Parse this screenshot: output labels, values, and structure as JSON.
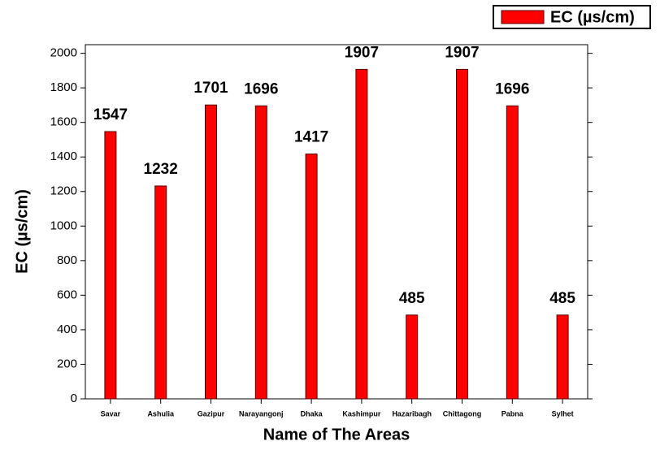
{
  "chart_data": {
    "type": "bar",
    "x_label": "Name of The Areas",
    "y_label": "EC (µs/cm)",
    "categories": [
      "Savar",
      "Ashulia",
      "Gazipur",
      "Narayangonj",
      "Dhaka",
      "Kashimpur",
      "Hazaribagh",
      "Chittagong",
      "Pabna",
      "Sylhet"
    ],
    "series": [
      {
        "name": "EC (µs/cm)",
        "color": "#ff0000",
        "values": [
          1547,
          1232,
          1701,
          1696,
          1417,
          1907,
          485,
          1907,
          1696,
          485
        ]
      }
    ],
    "ylim": [
      0,
      2050
    ],
    "yticks": [
      0,
      200,
      400,
      600,
      800,
      1000,
      1200,
      1400,
      1600,
      1800,
      2000
    ],
    "legend": "top-right"
  }
}
